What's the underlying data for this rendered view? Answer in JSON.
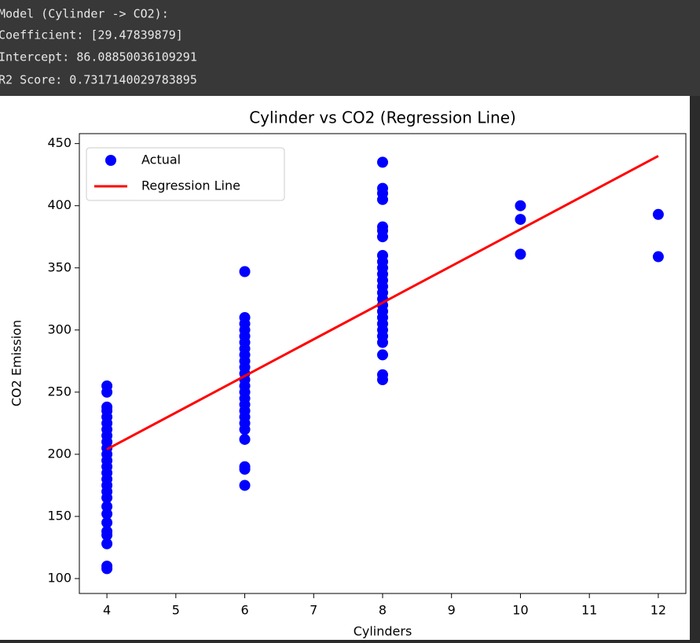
{
  "console": {
    "lines": [
      "Model (Cylinder -> CO2):",
      "Coefficient: [29.47839879]",
      "Intercept: 86.08850036109291",
      "R2 Score: 0.7317140029783895"
    ]
  },
  "chart_data": {
    "type": "scatter",
    "title": "Cylinder vs CO2 (Regression Line)",
    "x_label": "Cylinders",
    "y_label": "CO2 Emission",
    "xlim": [
      3.6,
      12.4
    ],
    "xticks": [
      4,
      5,
      6,
      7,
      8,
      9,
      10,
      11,
      12
    ],
    "ylim": [
      88,
      458
    ],
    "yticks": [
      100,
      150,
      200,
      250,
      300,
      350,
      400,
      450
    ],
    "grid": false,
    "legend": "upper left",
    "series": [
      {
        "name": "Actual",
        "type": "scatter",
        "color": "#0000ff",
        "x": [
          4,
          4,
          4,
          4,
          4,
          4,
          4,
          4,
          4,
          4,
          4,
          4,
          4,
          4,
          4,
          4,
          4,
          4,
          4,
          4,
          4,
          4,
          4,
          4,
          4,
          4,
          6,
          6,
          6,
          6,
          6,
          6,
          6,
          6,
          6,
          6,
          6,
          6,
          6,
          6,
          6,
          6,
          6,
          6,
          6,
          6,
          6,
          6,
          6,
          6,
          8,
          8,
          8,
          8,
          8,
          8,
          8,
          8,
          8,
          8,
          8,
          8,
          8,
          8,
          8,
          8,
          8,
          8,
          8,
          8,
          8,
          8,
          8,
          8,
          8,
          10,
          10,
          10,
          12,
          12
        ],
        "values": [
          108,
          110,
          128,
          135,
          138,
          145,
          152,
          158,
          165,
          170,
          175,
          180,
          185,
          190,
          195,
          200,
          205,
          210,
          215,
          220,
          225,
          230,
          235,
          238,
          250,
          255,
          175,
          188,
          190,
          212,
          220,
          225,
          230,
          235,
          240,
          245,
          250,
          255,
          260,
          265,
          270,
          275,
          280,
          285,
          290,
          295,
          300,
          305,
          310,
          347,
          260,
          264,
          280,
          290,
          295,
          300,
          305,
          310,
          315,
          320,
          325,
          330,
          335,
          340,
          345,
          350,
          355,
          360,
          375,
          380,
          383,
          405,
          410,
          414,
          435,
          361,
          389,
          400,
          359,
          393
        ]
      },
      {
        "name": "Regression Line",
        "type": "line",
        "color": "#ff0000",
        "x": [
          4,
          12
        ],
        "values": [
          204,
          440
        ]
      }
    ]
  }
}
